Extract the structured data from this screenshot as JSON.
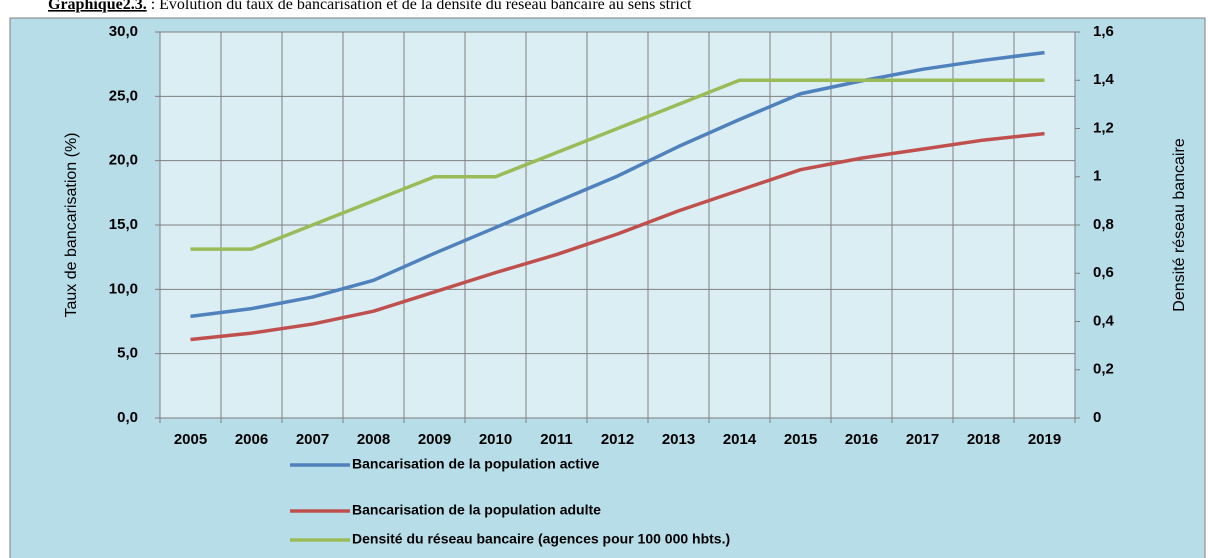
{
  "chart_data": {
    "type": "line",
    "title_label": "Graphique2.3.",
    "title": " : Évolution du taux de bancarisation et de la densité du réseau bancaire au sens strict",
    "ylabel": "Taux de bancarisation (%)",
    "y2label": "Densité réseau bancaire",
    "categories": [
      "2005",
      "2006",
      "2007",
      "2008",
      "2009",
      "2010",
      "2011",
      "2012",
      "2013",
      "2014",
      "2015",
      "2016",
      "2017",
      "2018",
      "2019"
    ],
    "series": [
      {
        "name": "Bancarisation de la population active",
        "color": "#4f81bd",
        "values": [
          7.9,
          8.5,
          9.4,
          10.7,
          12.8,
          14.8,
          16.8,
          18.8,
          21.1,
          23.2,
          25.2,
          26.2,
          27.1,
          27.8,
          28.4
        ]
      },
      {
        "name": "Bancarisation de la population adulte",
        "color": "#c0504d",
        "values": [
          6.1,
          6.6,
          7.3,
          8.3,
          9.8,
          11.3,
          12.7,
          14.3,
          16.1,
          17.7,
          19.3,
          20.2,
          20.9,
          21.6,
          22.1
        ]
      },
      {
        "name": "Densité du réseau bancaire (agences pour 100 000 hbts.)",
        "color": "#9bbb59",
        "axis": "y2",
        "values": [
          0.7,
          0.7,
          0.8,
          0.9,
          1.0,
          1.0,
          1.1,
          1.2,
          1.3,
          1.4,
          1.4,
          1.4,
          1.4,
          1.4,
          1.4
        ]
      }
    ],
    "ylim": [
      0,
      30
    ],
    "yticks": [
      {
        "value": 0,
        "label": "0,0"
      },
      {
        "value": 5,
        "label": "5,0"
      },
      {
        "value": 10,
        "label": "10,0"
      },
      {
        "value": 15,
        "label": "15,0"
      },
      {
        "value": 20,
        "label": "20,0"
      },
      {
        "value": 25,
        "label": "25,0"
      },
      {
        "value": 30,
        "label": "30,0"
      }
    ],
    "y2lim": [
      0,
      1.6
    ],
    "y2ticks": [
      0,
      {
        "value": 0.2,
        "label": "0,2"
      },
      {
        "value": 0.4,
        "label": "0,4"
      },
      {
        "value": 0.6,
        "label": "0,6"
      },
      {
        "value": 0.8,
        "label": "0,8"
      },
      1,
      {
        "value": 1.2,
        "label": "1,2"
      },
      {
        "value": 1.4,
        "label": "1,4"
      },
      {
        "value": 1.6,
        "label": "1,6"
      }
    ],
    "grid": true,
    "legend": "bottom"
  }
}
